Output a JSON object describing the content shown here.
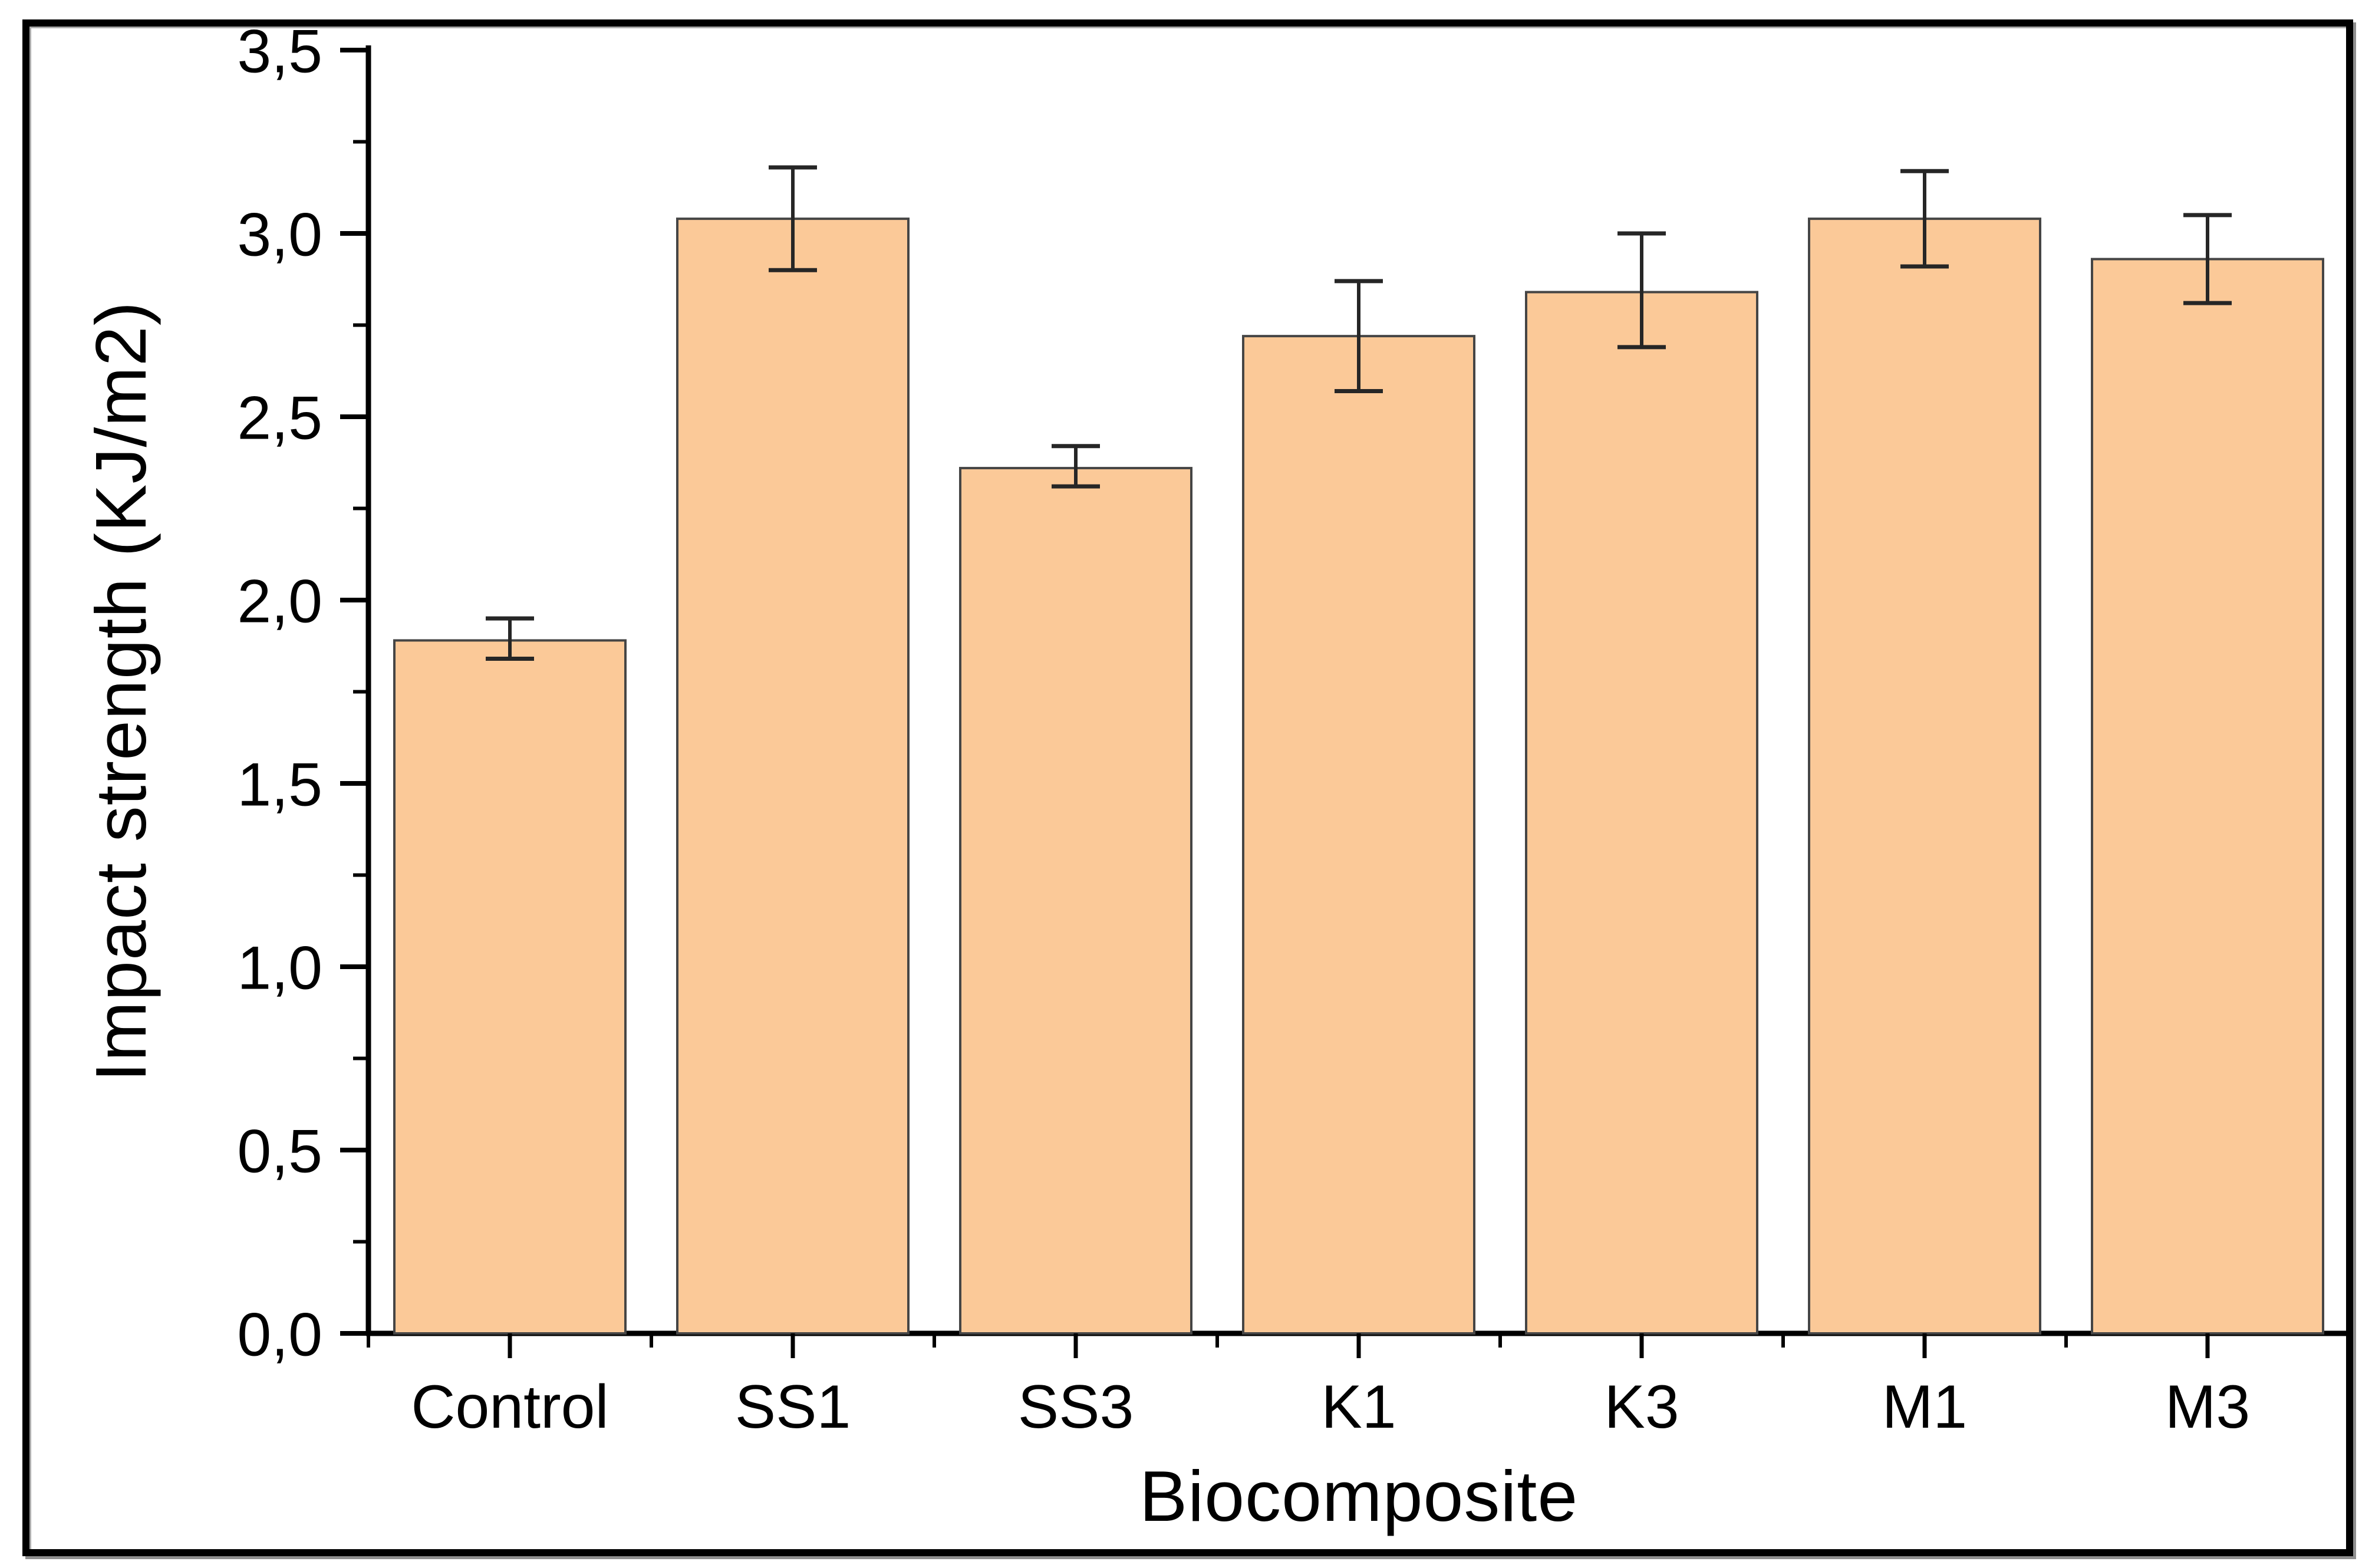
{
  "chart_data": {
    "type": "bar",
    "title": "",
    "categories": [
      "Control",
      "SS1",
      "SS3",
      "K1",
      "K3",
      "M1",
      "M3"
    ],
    "values": [
      1.89,
      3.04,
      2.36,
      2.72,
      2.84,
      3.04,
      2.93
    ],
    "error_plus": [
      0.06,
      0.14,
      0.06,
      0.15,
      0.16,
      0.13,
      0.12
    ],
    "error_minus": [
      0.05,
      0.14,
      0.05,
      0.15,
      0.15,
      0.13,
      0.12
    ],
    "xlabel": "Biocomposite",
    "ylabel": "Impact strength (KJ/m2)",
    "ylim": [
      0,
      3.5
    ],
    "ytick_major_step": 0.5,
    "ytick_minor_step": 0.25,
    "ytick_labels": [
      "0,0",
      "0,5",
      "1,0",
      "1,5",
      "2,0",
      "2,5",
      "3,0",
      "3,5"
    ],
    "decimal_separator": ",",
    "grid": false,
    "legend": "none",
    "colors": {
      "bar_fill": "#FBC998",
      "bar_edge": "#454545",
      "error_bar": "#262626",
      "axis": "#000000",
      "text": "#000000",
      "frame": "#000000",
      "background": "#ffffff"
    }
  }
}
